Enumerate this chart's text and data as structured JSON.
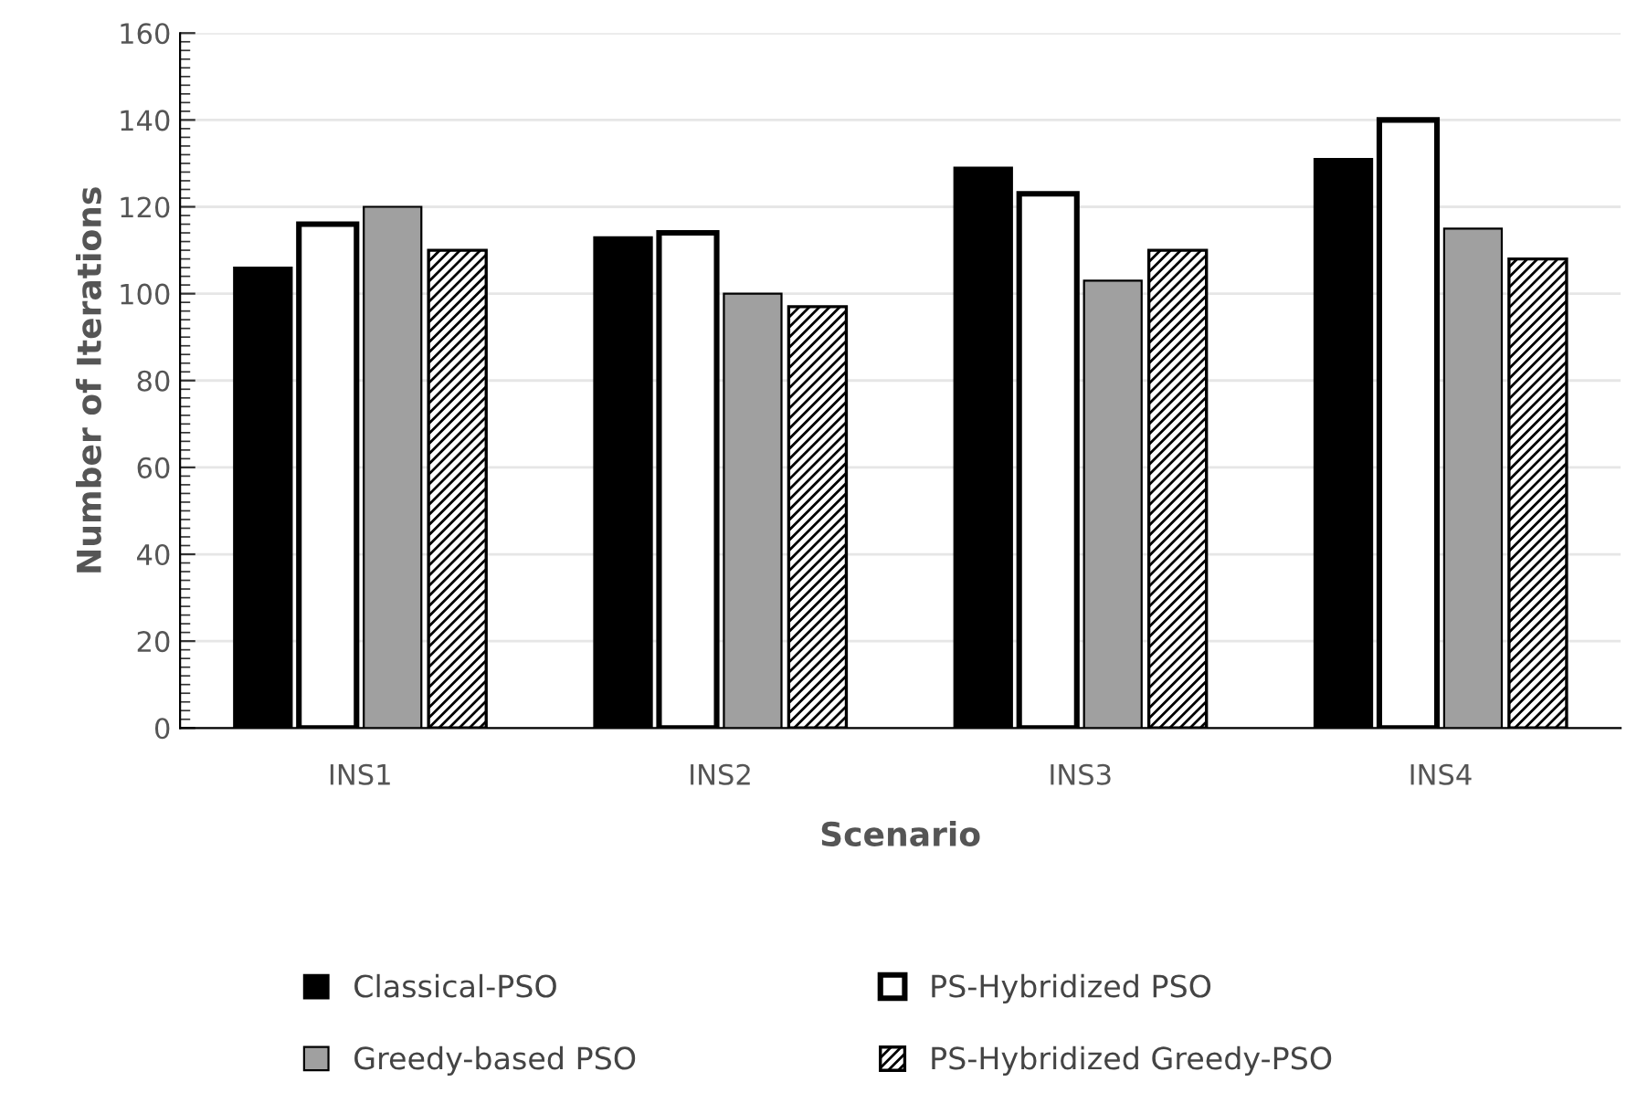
{
  "chart_data": {
    "type": "bar",
    "xlabel": "Scenario",
    "ylabel": "Number of Iterations",
    "categories": [
      "INS1",
      "INS2",
      "INS3",
      "INS4"
    ],
    "series": [
      {
        "name": "Classical-PSO",
        "color": "#000000",
        "values": [
          106,
          113,
          129,
          131
        ]
      },
      {
        "name": "PS-Hybridized PSO",
        "color": "#ffffff",
        "values": [
          116,
          114,
          123,
          140
        ]
      },
      {
        "name": "Greedy-based PSO",
        "color": "#a0a0a0",
        "values": [
          120,
          100,
          103,
          115
        ]
      },
      {
        "name": "PS-Hybridized Greedy-PSO",
        "color": "#000000",
        "values": [
          110,
          97,
          110,
          108
        ]
      }
    ],
    "ylim": [
      0,
      160
    ],
    "yticks": [
      0,
      20,
      40,
      60,
      80,
      100,
      120,
      140,
      160
    ],
    "grid": "y",
    "legend": "bottom"
  }
}
